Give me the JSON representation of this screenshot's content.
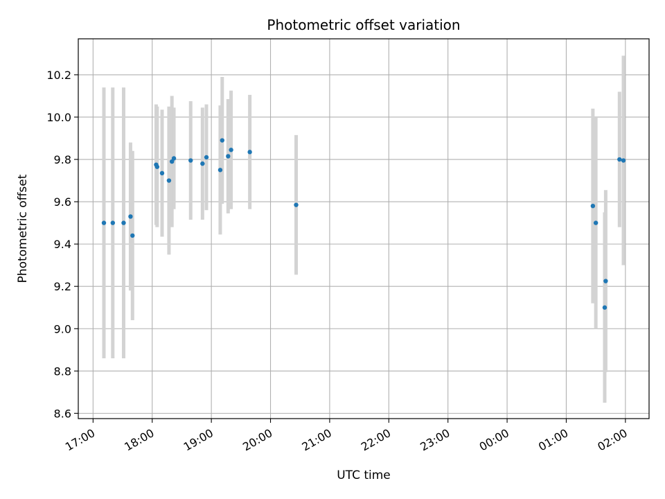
{
  "chart_data": {
    "type": "scatter",
    "title": "Photometric offset variation",
    "xlabel": "UTC time",
    "ylabel": "Photometric offset",
    "x_tick_labels": [
      "17:00",
      "18:00",
      "19:00",
      "20:00",
      "21:00",
      "22:00",
      "23:00",
      "00:00",
      "01:00",
      "02:00"
    ],
    "y_ticks": [
      "8.6",
      "8.8",
      "9.0",
      "9.2",
      "9.4",
      "9.6",
      "9.8",
      "10.0",
      "10.2"
    ],
    "xlim": [
      "16:45",
      "02:24"
    ],
    "ylim": [
      8.575,
      10.37
    ],
    "grid": true,
    "marker_color": "#1f77b4",
    "errorbar_color": "#d3d3d3",
    "points": [
      {
        "x": "17:11",
        "y": 9.5,
        "err": 0.64
      },
      {
        "x": "17:20",
        "y": 9.5,
        "err": 0.64
      },
      {
        "x": "17:31",
        "y": 9.5,
        "err": 0.64
      },
      {
        "x": "17:38",
        "y": 9.53,
        "err": 0.35
      },
      {
        "x": "17:40",
        "y": 9.44,
        "err": 0.4
      },
      {
        "x": "18:04",
        "y": 9.775,
        "err": 0.285
      },
      {
        "x": "18:05",
        "y": 9.765,
        "err": 0.285
      },
      {
        "x": "18:10",
        "y": 9.735,
        "err": 0.3
      },
      {
        "x": "18:17",
        "y": 9.7,
        "err": 0.35
      },
      {
        "x": "18:20",
        "y": 9.79,
        "err": 0.31
      },
      {
        "x": "18:22",
        "y": 9.805,
        "err": 0.24
      },
      {
        "x": "18:39",
        "y": 9.795,
        "err": 0.28
      },
      {
        "x": "18:51",
        "y": 9.78,
        "err": 0.265
      },
      {
        "x": "18:55",
        "y": 9.81,
        "err": 0.25
      },
      {
        "x": "19:09",
        "y": 9.75,
        "err": 0.305
      },
      {
        "x": "19:11",
        "y": 9.89,
        "err": 0.3
      },
      {
        "x": "19:17",
        "y": 9.815,
        "err": 0.27
      },
      {
        "x": "19:20",
        "y": 9.845,
        "err": 0.28
      },
      {
        "x": "19:39",
        "y": 9.835,
        "err": 0.27
      },
      {
        "x": "20:26",
        "y": 9.585,
        "err": 0.33
      },
      {
        "x": "01:27",
        "y": 9.58,
        "err": 0.46
      },
      {
        "x": "01:30",
        "y": 9.5,
        "err": 0.5
      },
      {
        "x": "01:39",
        "y": 9.1,
        "err": 0.45
      },
      {
        "x": "01:40",
        "y": 9.225,
        "err": 0.43
      },
      {
        "x": "01:54",
        "y": 9.8,
        "err": 0.32
      },
      {
        "x": "01:58",
        "y": 9.795,
        "err": 0.495
      }
    ]
  }
}
